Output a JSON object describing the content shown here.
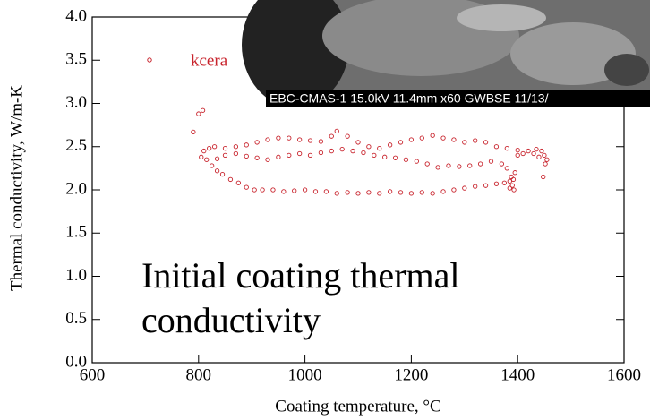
{
  "chart_data": {
    "type": "scatter",
    "x_label": "Coating temperature, °C",
    "y_label": "Thermal conductivity, W/m-K",
    "annotation": [
      "Initial coating thermal",
      "conductivity"
    ],
    "inset_caption": "EBC-CMAS-1 15.0kV 11.4mm x60 GWBSE 11/13/",
    "xlim": [
      600,
      1600
    ],
    "xticks": [
      600,
      800,
      1000,
      1200,
      1400,
      1600
    ],
    "ylim": [
      0,
      4
    ],
    "yticks": [
      {
        "value": 0,
        "label": "0.0"
      },
      {
        "value": 0.5,
        "label": "0.5"
      },
      {
        "value": 1,
        "label": "1.0"
      },
      {
        "value": 1.5,
        "label": "1.5"
      },
      {
        "value": 2,
        "label": "2.0"
      },
      {
        "value": 2.5,
        "label": "2.5"
      },
      {
        "value": 3,
        "label": "3.0"
      },
      {
        "value": 3.5,
        "label": "3.5"
      },
      {
        "value": 4,
        "label": "4.0"
      }
    ],
    "series": [
      {
        "name": "kcera",
        "color": "#c8232c",
        "x": [
          790,
          800,
          808,
          805,
          810,
          820,
          830,
          815,
          825,
          835,
          845,
          860,
          875,
          890,
          905,
          920,
          940,
          960,
          980,
          1000,
          1020,
          1040,
          1060,
          1080,
          1100,
          1120,
          1140,
          1160,
          1180,
          1200,
          1220,
          1240,
          1260,
          1280,
          1300,
          1320,
          1340,
          1360,
          1375,
          1385,
          1390,
          1392,
          1388,
          1395,
          1380,
          1385,
          1393,
          1370,
          1350,
          1330,
          1310,
          1290,
          1270,
          1250,
          1230,
          1210,
          1190,
          1170,
          1150,
          1130,
          1110,
          1090,
          1070,
          1050,
          1030,
          1010,
          990,
          970,
          950,
          930,
          910,
          890,
          870,
          850,
          835,
          850,
          870,
          890,
          910,
          930,
          950,
          970,
          990,
          1010,
          1030,
          1050,
          1060,
          1080,
          1100,
          1120,
          1140,
          1160,
          1180,
          1200,
          1220,
          1240,
          1260,
          1280,
          1300,
          1320,
          1340,
          1360,
          1380,
          1400,
          1420,
          1435,
          1445,
          1450,
          1455,
          1452,
          1448,
          1440,
          1430,
          1400,
          1410
        ],
        "values": [
          2.67,
          2.88,
          2.92,
          2.38,
          2.45,
          2.48,
          2.5,
          2.35,
          2.28,
          2.22,
          2.18,
          2.12,
          2.08,
          2.03,
          2.0,
          2.0,
          2.0,
          1.98,
          1.99,
          2.0,
          1.98,
          1.98,
          1.96,
          1.97,
          1.96,
          1.97,
          1.96,
          1.98,
          1.97,
          1.96,
          1.97,
          1.96,
          1.98,
          2.0,
          2.02,
          2.04,
          2.05,
          2.07,
          2.08,
          2.1,
          2.05,
          2.12,
          2.15,
          2.2,
          2.25,
          2.02,
          2.0,
          2.3,
          2.33,
          2.3,
          2.28,
          2.27,
          2.28,
          2.26,
          2.3,
          2.33,
          2.35,
          2.37,
          2.38,
          2.4,
          2.43,
          2.45,
          2.47,
          2.45,
          2.43,
          2.4,
          2.42,
          2.4,
          2.38,
          2.35,
          2.37,
          2.39,
          2.42,
          2.4,
          2.36,
          2.48,
          2.5,
          2.52,
          2.55,
          2.58,
          2.6,
          2.6,
          2.58,
          2.57,
          2.56,
          2.62,
          2.68,
          2.62,
          2.55,
          2.5,
          2.48,
          2.52,
          2.55,
          2.58,
          2.6,
          2.63,
          2.6,
          2.58,
          2.55,
          2.57,
          2.55,
          2.5,
          2.48,
          2.46,
          2.45,
          2.47,
          2.45,
          2.4,
          2.35,
          2.3,
          2.15,
          2.38,
          2.42,
          2.4,
          2.42
        ]
      }
    ]
  }
}
